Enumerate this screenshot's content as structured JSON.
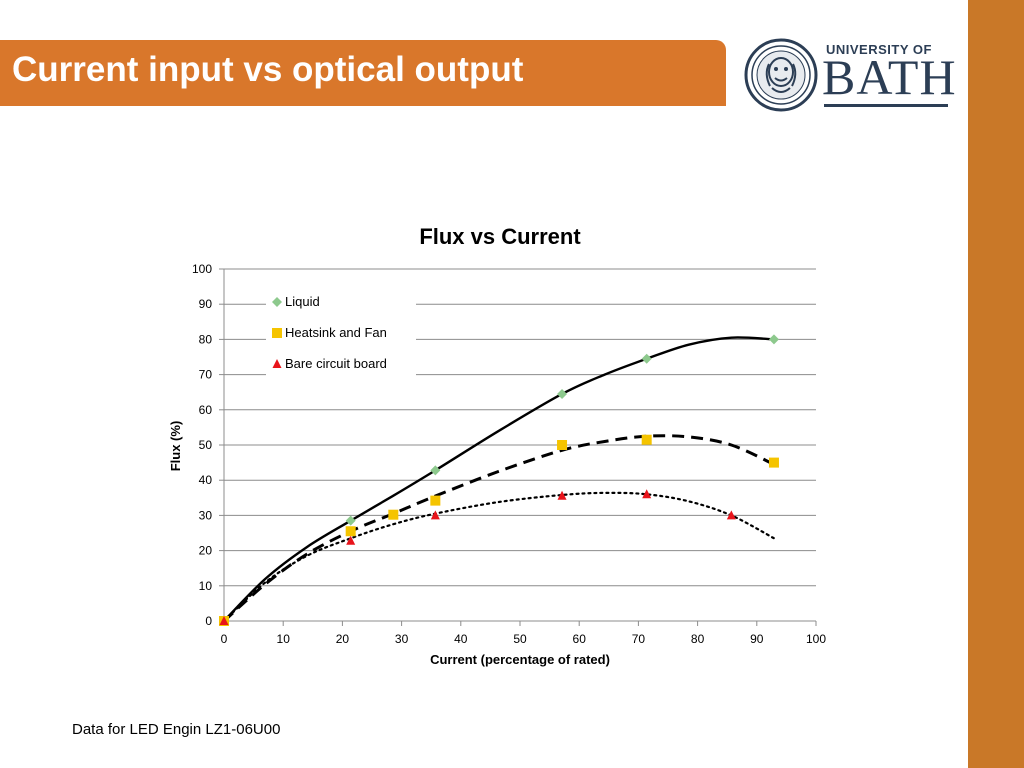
{
  "slide": {
    "title": "Current input vs optical output",
    "footer": "Data for LED Engin LZ1-06U00",
    "accent_color": "#d9772b",
    "stripe_color": "#c97828"
  },
  "logo": {
    "line1": "UNIVERSITY OF",
    "line2": "BATH",
    "icon": "bath-crest-icon",
    "color": "#2c3e55"
  },
  "chart_data": {
    "type": "scatter",
    "title": "Flux vs Current",
    "xlabel": "Current (percentage of rated)",
    "ylabel": "Flux (%)",
    "xlim": [
      0,
      100
    ],
    "ylim": [
      0,
      100
    ],
    "x_ticks": [
      "0",
      "10",
      "20",
      "30",
      "40",
      "50",
      "60",
      "70",
      "80",
      "90",
      "100"
    ],
    "y_ticks": [
      "0",
      "10",
      "20",
      "30",
      "40",
      "50",
      "60",
      "70",
      "80",
      "90",
      "100"
    ],
    "grid": "horizontal",
    "legend_position": "top-left",
    "series": [
      {
        "name": "Liquid",
        "marker": "diamond",
        "color": "#8dc98d",
        "points": [
          [
            0,
            0
          ],
          [
            21.4,
            28.5
          ],
          [
            35.7,
            42.8
          ],
          [
            57.1,
            64.5
          ],
          [
            71.4,
            74.5
          ],
          [
            92.9,
            80
          ]
        ],
        "trend": {
          "style": "solid",
          "color": "#000000",
          "points": [
            [
              0,
              0
            ],
            [
              7,
              12
            ],
            [
              14,
              21
            ],
            [
              21.4,
              28.5
            ],
            [
              28.5,
              35.5
            ],
            [
              35.7,
              42.8
            ],
            [
              46.4,
              54
            ],
            [
              57.1,
              64.5
            ],
            [
              64.3,
              70
            ],
            [
              71.4,
              74.5
            ],
            [
              78.5,
              78.5
            ],
            [
              85.7,
              80.5
            ],
            [
              92.9,
              80
            ]
          ]
        }
      },
      {
        "name": "Heatsink and Fan",
        "marker": "square",
        "color": "#f5c400",
        "points": [
          [
            0,
            0
          ],
          [
            21.4,
            25.5
          ],
          [
            28.6,
            30.2
          ],
          [
            35.7,
            34.2
          ],
          [
            57.1,
            50
          ],
          [
            71.4,
            51.5
          ],
          [
            92.9,
            45
          ]
        ],
        "trend": {
          "style": "dashed",
          "color": "#000000",
          "points": [
            [
              0,
              0
            ],
            [
              7,
              10.5
            ],
            [
              14,
              19
            ],
            [
              21.4,
              25.5
            ],
            [
              28.6,
              30.5
            ],
            [
              35.7,
              35.5
            ],
            [
              46.4,
              42.5
            ],
            [
              57.1,
              48.5
            ],
            [
              64.3,
              51
            ],
            [
              71.4,
              52.5
            ],
            [
              78.5,
              52.3
            ],
            [
              85.7,
              50
            ],
            [
              92.9,
              44.5
            ]
          ]
        }
      },
      {
        "name": "Bare circuit board",
        "marker": "triangle",
        "color": "#e8141b",
        "points": [
          [
            0,
            0
          ],
          [
            21.4,
            22.8
          ],
          [
            35.7,
            30
          ],
          [
            57.1,
            35.6
          ],
          [
            71.4,
            36
          ],
          [
            85.7,
            30
          ]
        ],
        "trend": {
          "style": "dotted",
          "color": "#000000",
          "points": [
            [
              0,
              0
            ],
            [
              7,
              11
            ],
            [
              14,
              18.5
            ],
            [
              21.4,
              23.5
            ],
            [
              28.6,
              27.5
            ],
            [
              35.7,
              30.5
            ],
            [
              46.4,
              33.8
            ],
            [
              57.1,
              35.8
            ],
            [
              64.3,
              36.4
            ],
            [
              71.4,
              36
            ],
            [
              78.5,
              34
            ],
            [
              85.7,
              30
            ],
            [
              92.9,
              23.5
            ]
          ]
        }
      }
    ]
  }
}
